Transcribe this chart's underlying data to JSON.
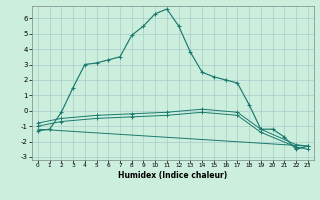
{
  "xlabel": "Humidex (Indice chaleur)",
  "bg_color": "#cceedd",
  "grid_color": "#aacccc",
  "line_color": "#1a7a6e",
  "xlim": [
    -0.5,
    23.5
  ],
  "ylim": [
    -3.2,
    6.8
  ],
  "yticks": [
    -3,
    -2,
    -1,
    0,
    1,
    2,
    3,
    4,
    5,
    6
  ],
  "xticks": [
    0,
    1,
    2,
    3,
    4,
    5,
    6,
    7,
    8,
    9,
    10,
    11,
    12,
    13,
    14,
    15,
    16,
    17,
    18,
    19,
    20,
    21,
    22,
    23
  ],
  "line1_x": [
    0,
    1,
    2,
    3,
    4,
    5,
    6,
    7,
    8,
    9,
    10,
    11,
    12,
    13,
    14,
    15,
    16,
    17,
    18,
    19,
    20,
    21,
    22,
    23
  ],
  "line1_y": [
    -1.3,
    -1.2,
    -0.1,
    1.5,
    3.0,
    3.1,
    3.3,
    3.5,
    4.9,
    5.5,
    6.3,
    6.6,
    5.5,
    3.8,
    2.5,
    2.2,
    2.0,
    1.8,
    0.4,
    -1.2,
    -1.2,
    -1.7,
    -2.5,
    -2.3
  ],
  "line2_x": [
    0,
    1,
    2,
    3,
    4,
    5,
    6,
    7,
    8,
    9,
    10,
    11,
    12,
    13,
    14,
    15,
    16,
    17,
    18,
    19,
    20,
    21,
    22,
    23
  ],
  "line2_y": [
    -1.3,
    -1.2,
    -0.1,
    1.5,
    3.0,
    3.1,
    3.3,
    3.5,
    4.9,
    5.5,
    6.3,
    6.6,
    5.5,
    3.8,
    2.5,
    2.2,
    2.0,
    1.8,
    0.4,
    -1.2,
    -1.2,
    -1.7,
    -2.5,
    -2.3
  ],
  "line3_x": [
    0,
    23
  ],
  "line3_y": [
    -1.2,
    -2.3
  ],
  "line4_x": [
    0,
    2,
    5,
    8,
    11,
    14,
    17,
    19,
    22,
    23
  ],
  "line4_y": [
    -0.8,
    -0.5,
    -0.3,
    -0.2,
    -0.1,
    0.1,
    -0.1,
    -1.2,
    -2.2,
    -2.3
  ],
  "line5_x": [
    0,
    2,
    5,
    8,
    11,
    14,
    17,
    19,
    22,
    23
  ],
  "line5_y": [
    -1.0,
    -0.7,
    -0.5,
    -0.4,
    -0.3,
    -0.1,
    -0.3,
    -1.4,
    -2.35,
    -2.5
  ]
}
